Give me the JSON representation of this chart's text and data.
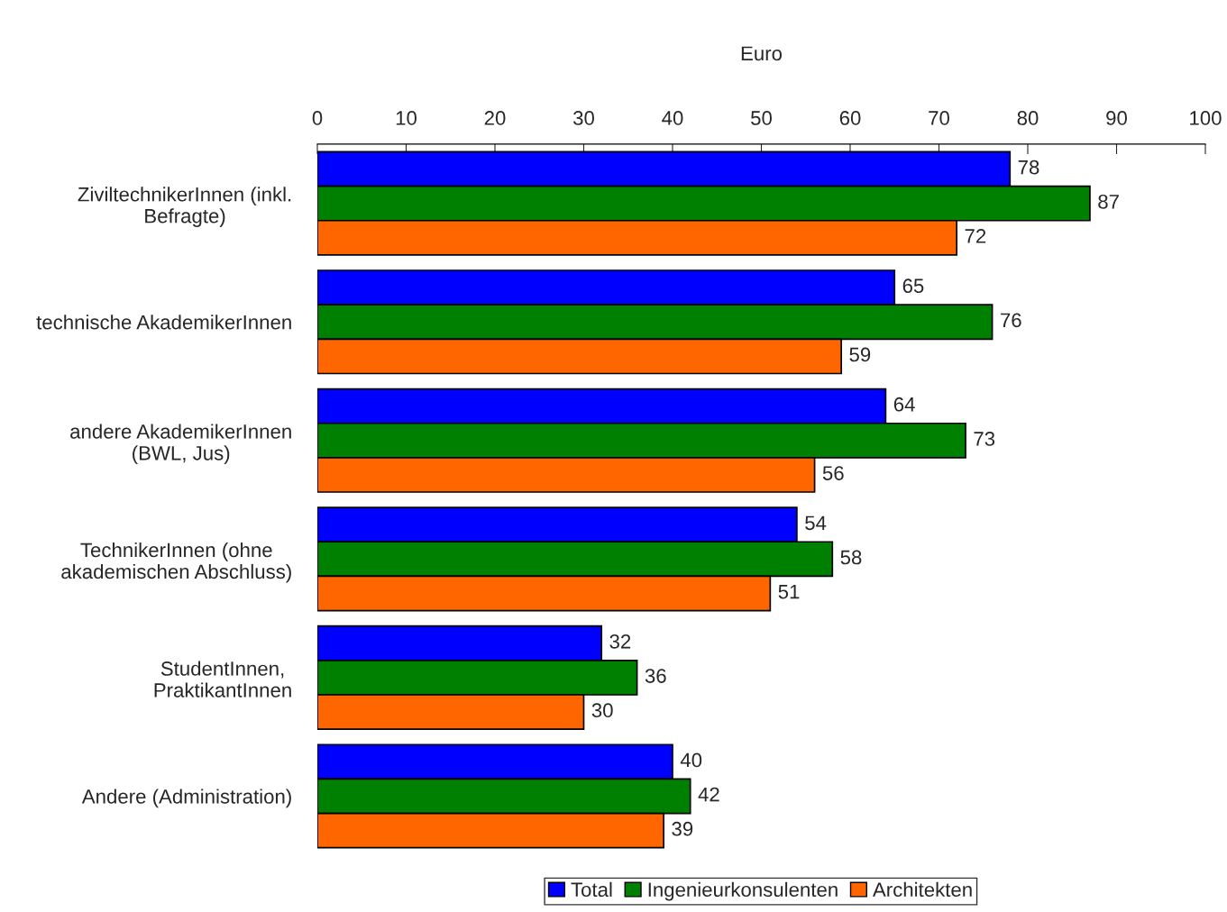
{
  "chart_data": {
    "type": "bar",
    "orientation": "horizontal",
    "xlabel": "Euro",
    "categories": [
      "ZiviltechnikerInnen (inkl.\nBefragte)",
      "technische AkademikerInnen",
      "andere AkademikerInnen\n(BWL, Jus)",
      "TechnikerInnen (ohne\nakademischen Abschluss)",
      "StudentInnen,\nPraktikantInnen",
      "Andere (Administration)"
    ],
    "series": [
      {
        "name": "Total",
        "color": "#0000ff",
        "values": [
          78,
          65,
          64,
          54,
          32,
          40
        ]
      },
      {
        "name": "Ingenieurkonsulenten",
        "color": "#008000",
        "values": [
          87,
          76,
          73,
          58,
          36,
          42
        ]
      },
      {
        "name": "Architekten",
        "color": "#ff6600",
        "values": [
          72,
          59,
          56,
          51,
          30,
          39
        ]
      }
    ],
    "xlim": [
      0,
      100
    ],
    "xticks": [
      0,
      10,
      20,
      30,
      40,
      50,
      60,
      70,
      80,
      90,
      100
    ],
    "data_labels": true,
    "grid": false,
    "legend": "bottom"
  }
}
